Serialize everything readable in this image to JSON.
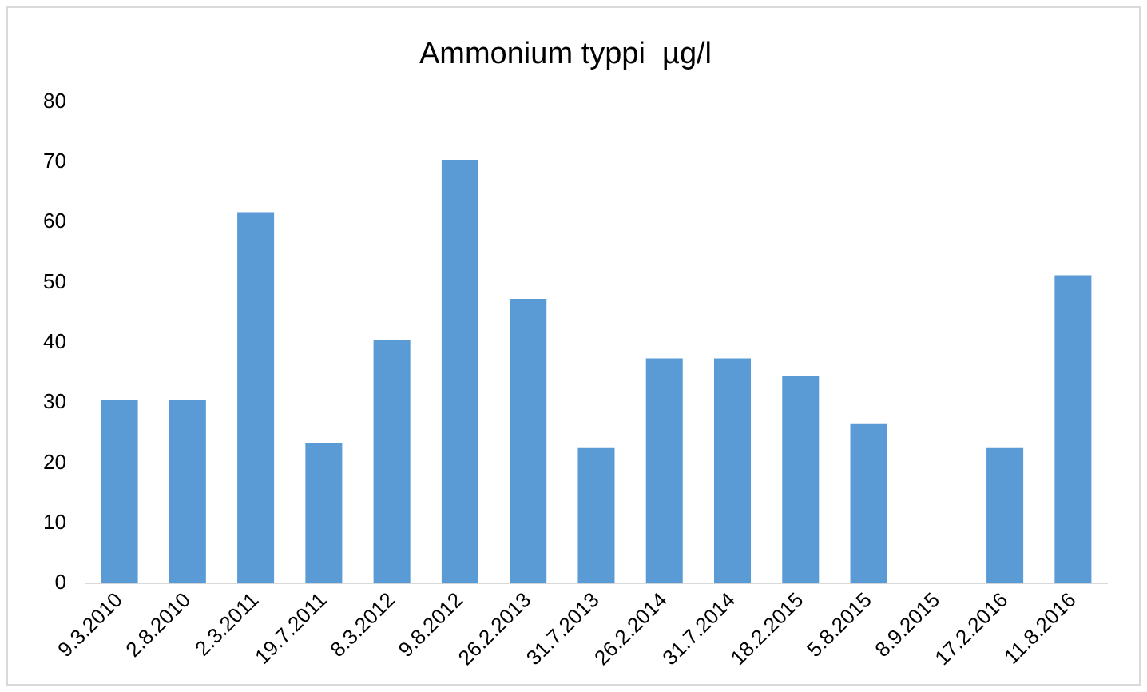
{
  "chart_data": {
    "type": "bar",
    "title": "Ammonium typpi  µg/l",
    "categories": [
      "9.3.2010",
      "2.8.2010",
      "2.3.2011",
      "19.7.2011",
      "8.3.2012",
      "9.8.2012",
      "26.2.2013",
      "31.7.2013",
      "26.2.2014",
      "31.7.2014",
      "18.2.2015",
      "5.8.2015",
      "8.9.2015",
      "17.2.2016",
      "11.8.2016"
    ],
    "values": [
      30.5,
      30.5,
      61.7,
      23.4,
      40.4,
      70.4,
      47.3,
      22.5,
      37.4,
      37.4,
      34.5,
      26.6,
      null,
      22.5,
      51.2
    ],
    "color": "#5b9bd5",
    "ylim": [
      0,
      80
    ],
    "yticks": [
      0,
      10,
      20,
      30,
      40,
      50,
      60,
      70,
      80
    ],
    "grid": false,
    "legend": false
  }
}
